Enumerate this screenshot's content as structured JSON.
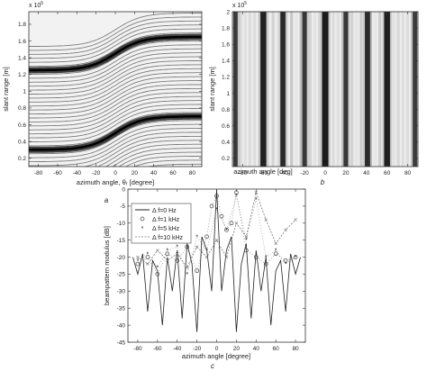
{
  "figure": {
    "panels": [
      {
        "id": "a",
        "caption": "a",
        "type": "heatmap",
        "exponent": "x 10",
        "exponent_power": "5",
        "xlabel": "azimuth angle, θᵣ [degree]",
        "ylabel": "slant range [m]",
        "xticks": [
          "-80",
          "-60",
          "-40",
          "-20",
          "0",
          "20",
          "40",
          "60",
          "80"
        ],
        "yticks": [
          "0.2",
          "0.4",
          "0.6",
          "0.8",
          "1",
          "1.2",
          "1.4",
          "1.6",
          "1.8"
        ]
      },
      {
        "id": "b",
        "caption": "b",
        "type": "heatmap",
        "exponent": "x 10",
        "exponent_power": "5",
        "xlabel": "azimuth angle [deg]",
        "ylabel": "slant range [m]",
        "xticks": [
          "-80",
          "-60",
          "-40",
          "-20",
          "0",
          "20",
          "40",
          "60",
          "80"
        ],
        "yticks": [
          "0.2",
          "0.4",
          "0.6",
          "0.8",
          "1",
          "1.2",
          "1.4",
          "1.6",
          "1.8",
          "2"
        ]
      },
      {
        "id": "c",
        "caption": "c",
        "type": "line",
        "xlabel": "azimuth angle [degree]",
        "ylabel": "beampattern modulus [dB]",
        "xticks": [
          "-80",
          "-60",
          "-40",
          "-20",
          "0",
          "20",
          "40",
          "60",
          "80"
        ],
        "yticks": [
          "0",
          "-5",
          "-10",
          "-15",
          "-20",
          "-25",
          "-30",
          "-35",
          "-40",
          "-45"
        ],
        "legend": [
          "Δ f=0 Hz",
          "Δ f=1 kHz",
          "Δ f=5 kHz",
          "Δ f=10 kHz"
        ]
      }
    ]
  },
  "chart_data": [
    {
      "type": "heatmap",
      "xlabel": "azimuth angle, θᵣ [degree]",
      "ylabel": "slant range [m]",
      "xlim": [
        -90,
        90
      ],
      "ylim": [
        0.1,
        1.95
      ],
      "y_scale_factor": "1e5",
      "grid": false,
      "description_pattern": "diagonal S-shaped fringes; dark main bands at slant range ~0.5 and ~1.45 (x10^5) crossing near 0 deg",
      "main_band_centers_y": [
        0.5,
        1.45
      ]
    },
    {
      "type": "heatmap",
      "xlabel": "azimuth angle [deg]",
      "ylabel": "slant range [m]",
      "xlim": [
        -90,
        90
      ],
      "ylim": [
        0.1,
        2.0
      ],
      "y_scale_factor": "1e5",
      "grid": false,
      "dark_stripes_deg": [
        -87,
        -60,
        -41,
        -20,
        0,
        20,
        41,
        60,
        87
      ],
      "stripe_strength": [
        0.55,
        0.9,
        0.75,
        0.6,
        1.0,
        0.6,
        0.75,
        0.9,
        0.55
      ]
    },
    {
      "type": "line",
      "xlabel": "azimuth angle [degree]",
      "ylabel": "beampattern modulus [dB]",
      "xlim": [
        -90,
        90
      ],
      "ylim": [
        -45,
        0
      ],
      "grid": false,
      "legend_position": "top-left",
      "series": [
        {
          "name": "Δ f=0 Hz",
          "style": "solid",
          "color": "#222222",
          "x": [
            -85,
            -80,
            -75,
            -70,
            -65,
            -60,
            -55,
            -50,
            -45,
            -40,
            -35,
            -30,
            -25,
            -20,
            -15,
            -10,
            -5,
            0,
            5,
            10,
            15,
            20,
            25,
            30,
            35,
            40,
            45,
            50,
            55,
            60,
            65,
            70,
            75,
            80,
            85
          ],
          "y": [
            -20,
            -25,
            -19,
            -36,
            -21,
            -24,
            -40,
            -20,
            -30,
            -18,
            -38,
            -16,
            -22,
            -42,
            -14,
            -18,
            -30,
            0,
            -30,
            -18,
            -14,
            -42,
            -22,
            -16,
            -38,
            -18,
            -30,
            -20,
            -40,
            -24,
            -21,
            -36,
            -19,
            -25,
            -20
          ]
        },
        {
          "name": "Δ f=1 kHz",
          "style": "circles",
          "color": "#444444",
          "x": [
            -80,
            -70,
            -60,
            -50,
            -40,
            -30,
            -20,
            -10,
            -5,
            0,
            5,
            10,
            15,
            20,
            30,
            40,
            50,
            60,
            70,
            80
          ],
          "y": [
            -22,
            -20,
            -25,
            -19,
            -21,
            -17,
            -24,
            -14,
            -5,
            -2,
            -8,
            -12,
            -10,
            -1,
            -18,
            -20,
            -22,
            -19,
            -21,
            -20
          ]
        },
        {
          "name": "Δ f=5 kHz",
          "style": "stars",
          "color": "#555555",
          "x": [
            -80,
            -70,
            -60,
            -50,
            -40,
            -30,
            -20,
            -10,
            0,
            10,
            20,
            30,
            40,
            50,
            60,
            70,
            80
          ],
          "y": [
            -21,
            -19,
            -23,
            -18,
            -17,
            -25,
            -14,
            -18,
            -6,
            -12,
            -2,
            -15,
            -3,
            -20,
            -18,
            -22,
            -20
          ]
        },
        {
          "name": "Δ f=10 kHz",
          "style": "dash-x",
          "color": "#777777",
          "x": [
            -80,
            -70,
            -60,
            -50,
            -40,
            -30,
            -20,
            -10,
            0,
            10,
            20,
            30,
            40,
            50,
            60,
            70,
            80
          ],
          "y": [
            -20,
            -22,
            -18,
            -21,
            -19,
            -23,
            -17,
            -20,
            -15,
            -20,
            -10,
            -14,
            -1,
            -9,
            -16,
            -12,
            -9
          ]
        }
      ]
    }
  ]
}
